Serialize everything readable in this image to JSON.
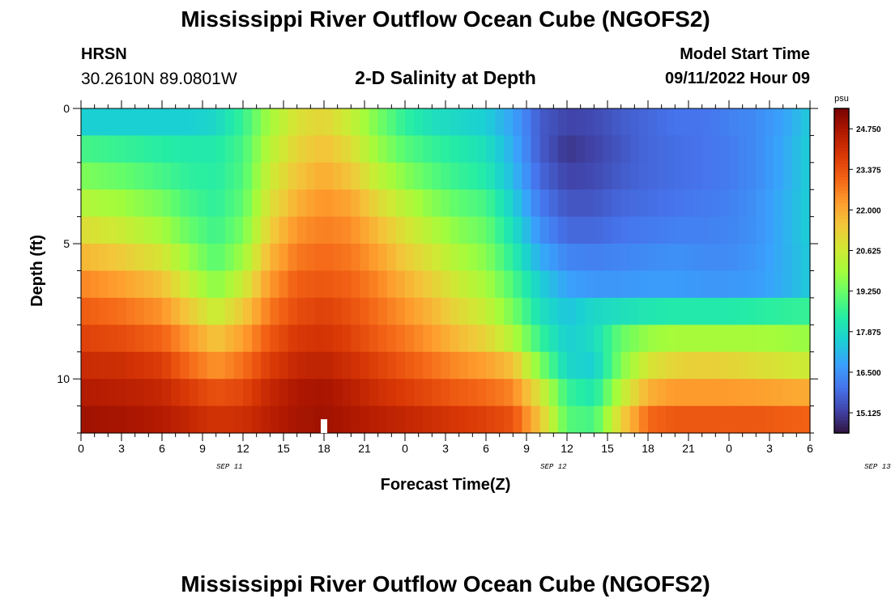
{
  "header": {
    "title": "Mississippi River Outflow Ocean Cube (NGOFS2)",
    "station_name": "HRSN",
    "station_coords": "30.2610N  89.0801W",
    "subtitle": "2-D Salinity at Depth",
    "model_start_label": "Model Start Time",
    "model_start_value": "09/11/2022 Hour 09"
  },
  "footer": {
    "title": "Mississippi River Outflow Ocean Cube (NGOFS2)"
  },
  "chart_data": {
    "type": "heatmap",
    "title": "2-D Salinity at Depth",
    "xlabel": "Forecast Time(Z)",
    "ylabel": "Depth (ft)",
    "x_unit_hours_since_start_of_sep_11": true,
    "xlim_hours": [
      0,
      54
    ],
    "x_ticks": [
      0,
      3,
      6,
      9,
      12,
      15,
      18,
      21,
      24,
      27,
      30,
      33,
      36,
      39,
      42,
      45,
      48,
      51,
      54
    ],
    "x_tick_labels": [
      "0",
      "3",
      "6",
      "9",
      "12",
      "15",
      "18",
      "21",
      "0",
      "3",
      "6",
      "9",
      "12",
      "15",
      "18",
      "21",
      "0",
      "3",
      "6"
    ],
    "date_labels": [
      {
        "hour": 11,
        "text": "SEP 11"
      },
      {
        "hour": 35,
        "text": "SEP 12"
      },
      {
        "hour": 59,
        "text": "SEP 13"
      }
    ],
    "ylim_ft": [
      0,
      12
    ],
    "y_inverted": true,
    "y_ticks": [
      0,
      5,
      10
    ],
    "y_tick_labels": [
      "0",
      "5",
      "10"
    ],
    "current_time_marker_hour": 18,
    "colorbar": {
      "unit": "psu",
      "min": 14.44,
      "max": 25.44,
      "tick_values": [
        24.75,
        23.375,
        22.0,
        20.625,
        19.25,
        17.875,
        16.5,
        15.125
      ],
      "tick_labels": [
        "24.750",
        "23.375",
        "22.000",
        "20.625",
        "19.250",
        "17.875",
        "16.500",
        "15.125"
      ],
      "colormap": [
        "#30123b",
        "#4145ab",
        "#4675ed",
        "#39a2fc",
        "#1bcfd4",
        "#24eca6",
        "#61fc6c",
        "#a4fc3b",
        "#d1e834",
        "#f3c63a",
        "#fe9b2d",
        "#f36315",
        "#d93806",
        "#b11901",
        "#7a0402"
      ]
    },
    "rows_depth_ft": [
      0.5,
      1.5,
      2.5,
      3.5,
      4.5,
      5.5,
      6.5,
      7.5,
      8.5,
      9.5,
      10.5,
      11.5
    ],
    "anchor_hours": [
      0,
      3,
      6,
      8,
      10,
      12,
      14,
      16,
      18,
      20,
      22,
      24,
      26,
      28,
      30,
      32,
      34,
      36,
      38,
      40,
      42,
      44,
      46,
      48,
      50,
      52,
      54
    ],
    "salinity_rows": [
      [
        17.6,
        17.6,
        17.6,
        17.6,
        17.8,
        18.6,
        20.0,
        20.9,
        21.2,
        20.5,
        19.4,
        18.5,
        18.0,
        17.8,
        17.6,
        16.8,
        15.6,
        15.2,
        15.3,
        15.6,
        15.8,
        16.0,
        16.0,
        16.2,
        16.4,
        16.8,
        17.5
      ],
      [
        18.8,
        18.6,
        18.4,
        18.3,
        18.3,
        18.8,
        20.3,
        21.2,
        21.6,
        21.0,
        19.8,
        19.0,
        18.6,
        18.3,
        18.0,
        17.0,
        15.6,
        15.0,
        15.2,
        15.5,
        15.8,
        15.9,
        16.0,
        16.1,
        16.4,
        16.9,
        17.6
      ],
      [
        19.5,
        19.2,
        18.8,
        18.5,
        18.4,
        18.9,
        20.6,
        21.5,
        22.0,
        21.5,
        20.4,
        19.6,
        19.0,
        18.6,
        18.3,
        17.2,
        15.8,
        15.2,
        15.3,
        15.6,
        15.8,
        15.9,
        16.0,
        16.1,
        16.4,
        16.9,
        17.6
      ],
      [
        20.2,
        19.9,
        19.4,
        18.8,
        18.5,
        19.1,
        20.9,
        21.9,
        22.4,
        22.1,
        21.1,
        20.3,
        19.6,
        19.1,
        18.8,
        17.6,
        16.1,
        15.5,
        15.5,
        15.8,
        15.9,
        16.0,
        16.1,
        16.2,
        16.5,
        17.0,
        17.6
      ],
      [
        21.0,
        20.6,
        20.0,
        19.2,
        18.7,
        19.4,
        21.3,
        22.4,
        22.7,
        22.5,
        21.7,
        20.9,
        20.2,
        19.6,
        19.2,
        18.0,
        16.5,
        15.8,
        15.8,
        16.0,
        16.1,
        16.2,
        16.2,
        16.3,
        16.5,
        17.0,
        17.6
      ],
      [
        21.8,
        21.4,
        20.8,
        19.8,
        19.0,
        19.9,
        21.8,
        22.8,
        23.0,
        22.8,
        22.2,
        21.4,
        20.8,
        20.1,
        19.6,
        18.4,
        17.0,
        16.3,
        16.2,
        16.3,
        16.4,
        16.5,
        16.4,
        16.4,
        16.6,
        17.0,
        17.5
      ],
      [
        22.6,
        22.2,
        21.6,
        20.5,
        19.6,
        20.6,
        22.3,
        23.2,
        23.3,
        23.1,
        22.6,
        21.9,
        21.3,
        20.6,
        20.0,
        18.9,
        17.6,
        16.8,
        16.6,
        16.6,
        16.7,
        16.7,
        16.6,
        16.6,
        16.7,
        17.0,
        17.5
      ],
      [
        23.2,
        22.9,
        22.4,
        21.4,
        20.5,
        21.4,
        22.8,
        23.5,
        23.7,
        23.4,
        22.9,
        22.4,
        21.8,
        21.1,
        20.5,
        19.4,
        18.0,
        17.4,
        17.8,
        18.0,
        18.2,
        18.3,
        18.3,
        18.3,
        18.4,
        18.5,
        18.6
      ],
      [
        23.7,
        23.5,
        23.1,
        22.3,
        21.5,
        22.2,
        23.3,
        23.9,
        24.0,
        23.7,
        23.2,
        22.8,
        22.3,
        21.7,
        21.2,
        20.2,
        18.6,
        17.6,
        17.9,
        19.2,
        19.8,
        20.0,
        20.0,
        20.0,
        20.0,
        19.9,
        19.8
      ],
      [
        24.2,
        24.1,
        23.8,
        23.0,
        22.4,
        22.9,
        23.8,
        24.3,
        24.4,
        24.1,
        23.7,
        23.3,
        22.9,
        22.5,
        22.2,
        21.6,
        19.5,
        17.8,
        17.6,
        19.5,
        20.8,
        21.2,
        21.3,
        21.2,
        21.0,
        20.8,
        20.6
      ],
      [
        24.6,
        24.5,
        24.3,
        23.8,
        23.4,
        23.6,
        24.3,
        24.7,
        24.8,
        24.5,
        24.1,
        23.8,
        23.5,
        23.2,
        23.0,
        22.6,
        20.8,
        18.6,
        18.2,
        20.3,
        21.9,
        22.3,
        22.3,
        22.3,
        22.2,
        22.1,
        22.0
      ],
      [
        24.9,
        24.8,
        24.6,
        24.3,
        24.0,
        24.1,
        24.5,
        24.8,
        24.9,
        24.7,
        24.5,
        24.3,
        24.1,
        23.9,
        23.7,
        23.4,
        21.5,
        19.0,
        18.8,
        21.2,
        23.0,
        23.3,
        23.3,
        23.3,
        23.3,
        23.2,
        23.1
      ]
    ]
  }
}
